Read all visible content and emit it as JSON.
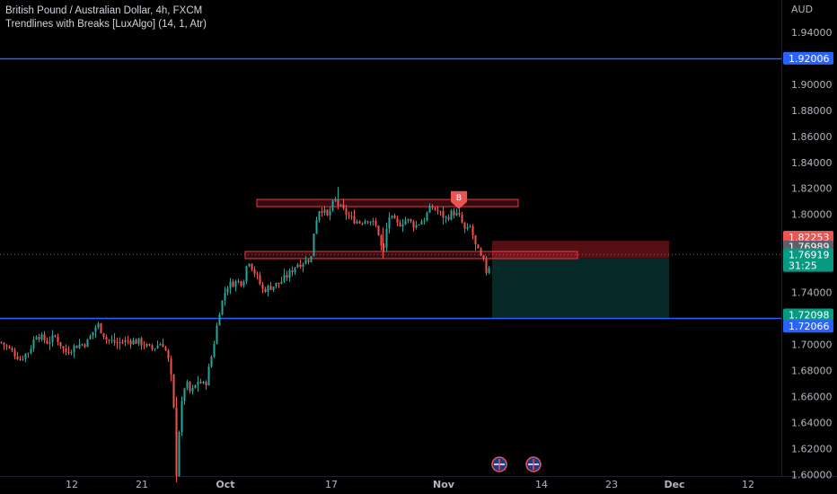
{
  "header": {
    "title": "British Pound / Australian Dollar, 4h, FXCM",
    "indicator": "Trendlines with Breaks [LuxAlgo] (14, 1, Atr)"
  },
  "colors": {
    "background": "#000000",
    "up_candle": "#26a69a",
    "down_candle": "#ef5350",
    "horizontal_line": "#2962ff",
    "zone_border": "#f23645",
    "stop_zone": "#5a1116",
    "target_zone": "#072b2a",
    "axis_text": "#b2b5be",
    "price_line": "#ef5350"
  },
  "chart_data": {
    "type": "candlestick",
    "symbol": "British Pound / Australian Dollar",
    "timeframe": "4h",
    "exchange": "FXCM",
    "currency_label": "AUD",
    "y_ticks": [
      "1.94000",
      "1.90000",
      "1.88000",
      "1.86000",
      "1.84000",
      "1.82000",
      "1.80000",
      "1.74000",
      "1.70000",
      "1.68000",
      "1.66000",
      "1.64000",
      "1.62000",
      "1.60000"
    ],
    "ylim": [
      1.6,
      1.95
    ],
    "x_ticks": [
      "12",
      "21",
      "Oct",
      "17",
      "Nov",
      "14",
      "23",
      "Dec",
      "12"
    ],
    "price_path": [
      [
        0,
        1.702
      ],
      [
        12,
        1.695
      ],
      [
        22,
        1.689
      ],
      [
        32,
        1.695
      ],
      [
        40,
        1.708
      ],
      [
        52,
        1.702
      ],
      [
        62,
        1.706
      ],
      [
        72,
        1.694
      ],
      [
        84,
        1.699
      ],
      [
        96,
        1.701
      ],
      [
        108,
        1.716
      ],
      [
        118,
        1.704
      ],
      [
        130,
        1.701
      ],
      [
        142,
        1.703
      ],
      [
        155,
        1.702
      ],
      [
        168,
        1.696
      ],
      [
        180,
        1.702
      ],
      [
        186,
        1.692
      ],
      [
        192,
        1.666
      ],
      [
        196,
        1.601
      ],
      [
        200,
        1.645
      ],
      [
        206,
        1.672
      ],
      [
        212,
        1.662
      ],
      [
        220,
        1.672
      ],
      [
        228,
        1.668
      ],
      [
        236,
        1.694
      ],
      [
        244,
        1.726
      ],
      [
        252,
        1.745
      ],
      [
        262,
        1.748
      ],
      [
        270,
        1.748
      ],
      [
        276,
        1.766
      ],
      [
        284,
        1.754
      ],
      [
        292,
        1.742
      ],
      [
        300,
        1.744
      ],
      [
        310,
        1.747
      ],
      [
        320,
        1.753
      ],
      [
        330,
        1.762
      ],
      [
        340,
        1.764
      ],
      [
        346,
        1.767
      ],
      [
        350,
        1.793
      ],
      [
        356,
        1.806
      ],
      [
        364,
        1.798
      ],
      [
        372,
        1.811
      ],
      [
        380,
        1.804
      ],
      [
        390,
        1.797
      ],
      [
        400,
        1.794
      ],
      [
        410,
        1.797
      ],
      [
        420,
        1.789
      ],
      [
        426,
        1.768
      ],
      [
        432,
        1.799
      ],
      [
        442,
        1.792
      ],
      [
        452,
        1.796
      ],
      [
        462,
        1.791
      ],
      [
        472,
        1.797
      ],
      [
        480,
        1.806
      ],
      [
        488,
        1.802
      ],
      [
        496,
        1.797
      ],
      [
        504,
        1.802
      ],
      [
        512,
        1.797
      ],
      [
        518,
        1.786
      ],
      [
        524,
        1.791
      ],
      [
        528,
        1.777
      ],
      [
        534,
        1.768
      ],
      [
        538,
        1.763
      ],
      [
        542,
        1.754
      ],
      [
        546,
        1.766
      ]
    ],
    "horizontal_lines": [
      {
        "price": 1.92006,
        "label": "1.92006"
      },
      {
        "price": 1.72066,
        "label": "1.72066"
      }
    ],
    "resistance_zones": [
      {
        "from_x": 286,
        "to_x": 577,
        "top": 1.8115,
        "bottom": 1.806
      },
      {
        "from_x": 273,
        "to_x": 643,
        "top": 1.7715,
        "bottom": 1.766
      }
    ],
    "short_position": {
      "start_x": 548,
      "end_x": 745,
      "entry": 1.7665,
      "stop": 1.7797,
      "target": 1.7207
    },
    "current_price": 1.76919,
    "break_marker": {
      "x": 511,
      "price": 1.811,
      "label": "B"
    },
    "price_labels": [
      {
        "value": "1.82253",
        "price": 1.7825,
        "bg": "#ef5350",
        "fg": "#ffffff"
      },
      {
        "value": "1.76989",
        "price": 1.7752,
        "bg": "#5d606b",
        "fg": "#ffffff"
      },
      {
        "value": "1.76919",
        "countdown": "31:25",
        "price": 1.7683,
        "bg": "#089981",
        "fg": "#ffffff"
      },
      {
        "value": "1.72098",
        "price": 1.7228,
        "bg": "#089981",
        "fg": "#ffffff"
      },
      {
        "value": "1.72066",
        "price": 1.714,
        "bg": "#2962ff",
        "fg": "#ffffff"
      }
    ],
    "axis_top_label": "1.92006",
    "events": [
      {
        "x": 556,
        "flag": "AUD-flag-icon"
      },
      {
        "x": 594,
        "flag": "GBP-flag-icon"
      }
    ]
  }
}
